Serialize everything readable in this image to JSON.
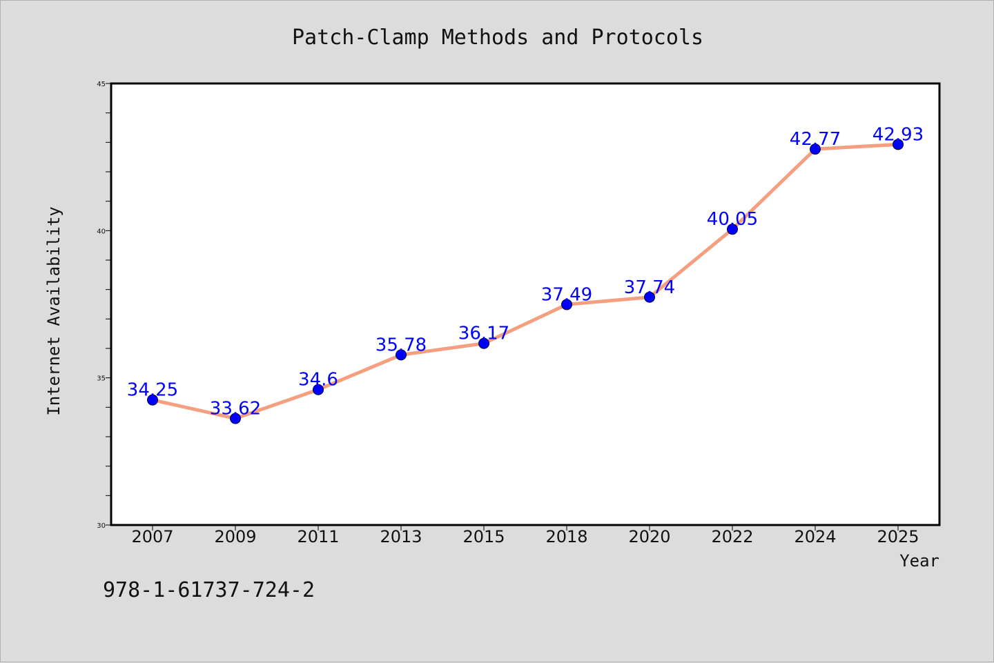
{
  "chart_data": {
    "type": "line",
    "title": "Patch-Clamp Methods and Protocols",
    "xlabel": "Year",
    "ylabel": "Internet Availability",
    "categories": [
      "2007",
      "2009",
      "2011",
      "2013",
      "2015",
      "2018",
      "2020",
      "2022",
      "2024",
      "2025"
    ],
    "values": [
      34.25,
      33.62,
      34.6,
      35.78,
      36.17,
      37.49,
      37.74,
      40.05,
      42.77,
      42.93
    ],
    "data_labels": [
      "34.25",
      "33.62",
      "34.6",
      "35.78",
      "36.17",
      "37.49",
      "37.74",
      "40.05",
      "42.77",
      "42.93"
    ],
    "ylim": [
      30,
      45
    ],
    "yticks": [
      "30",
      "35",
      "40",
      "45"
    ],
    "grid": false,
    "legend": "none",
    "colors": {
      "line": "#f4a080",
      "marker": "#0000ff",
      "label": "#0000ff",
      "background": "#dcdcdc",
      "plot_background": "#ffffff"
    }
  },
  "footer": {
    "isbn": "978-1-61737-724-2"
  }
}
